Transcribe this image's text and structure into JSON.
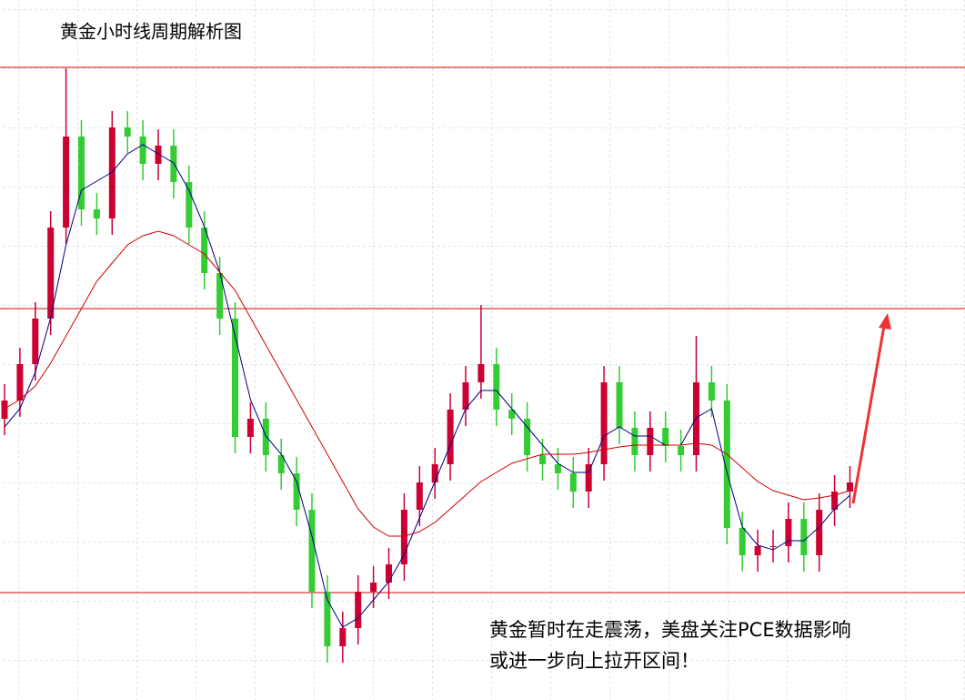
{
  "chart_data": {
    "type": "candlestick",
    "title": "黄金小时线周期解析图",
    "annotation": [
      "黄金暂时在走震荡，美盘关注PCE数据影响",
      "或进一步向上拉开区间！"
    ],
    "open": [
      309,
      329,
      369,
      419,
      519,
      619,
      539,
      529,
      629,
      619,
      589,
      609,
      569,
      519,
      469,
      419,
      289,
      309,
      269,
      249,
      209,
      119,
      59,
      79,
      119,
      129,
      149,
      209,
      239,
      259,
      319,
      349,
      369,
      319,
      309,
      269,
      259,
      249,
      229,
      259,
      349,
      299,
      269,
      299,
      279,
      269,
      349,
      329,
      189,
      159,
      169,
      169,
      199,
      159,
      209,
      229
    ],
    "high": [
      347,
      387,
      437,
      537,
      694,
      637,
      557,
      647,
      647,
      637,
      627,
      627,
      587,
      537,
      487,
      437,
      327,
      327,
      287,
      267,
      227,
      137,
      97,
      137,
      147,
      167,
      227,
      257,
      277,
      337,
      367,
      434,
      387,
      337,
      327,
      287,
      277,
      267,
      277,
      367,
      367,
      317,
      317,
      317,
      297,
      400,
      367,
      347,
      207,
      187,
      187,
      217,
      217,
      227,
      247,
      257
    ],
    "low": [
      291,
      311,
      351,
      401,
      501,
      521,
      511,
      511,
      601,
      571,
      571,
      551,
      501,
      451,
      401,
      271,
      271,
      251,
      231,
      191,
      101,
      41,
      41,
      61,
      101,
      111,
      131,
      191,
      221,
      241,
      301,
      331,
      301,
      291,
      251,
      241,
      231,
      211,
      211,
      241,
      281,
      251,
      251,
      261,
      251,
      251,
      311,
      171,
      141,
      141,
      151,
      151,
      141,
      141,
      191,
      211
    ],
    "close": [
      329,
      369,
      419,
      519,
      619,
      539,
      529,
      629,
      619,
      589,
      609,
      569,
      519,
      469,
      419,
      289,
      309,
      269,
      249,
      209,
      119,
      59,
      79,
      119,
      129,
      149,
      209,
      239,
      259,
      319,
      349,
      369,
      319,
      309,
      269,
      259,
      249,
      229,
      259,
      349,
      299,
      269,
      299,
      279,
      269,
      349,
      329,
      189,
      159,
      169,
      169,
      199,
      159,
      209,
      229,
      239
    ],
    "up_color": "#cc0033",
    "down_color": "#33cc33",
    "series": [
      {
        "color": "#000080",
        "values": [
          300,
          320,
          360,
          420,
          500,
          560,
          570,
          580,
          600,
          610,
          600,
          590,
          560,
          520,
          470,
          400,
          330,
          290,
          270,
          240,
          180,
          110,
          80,
          90,
          110,
          130,
          160,
          200,
          240,
          280,
          320,
          340,
          340,
          320,
          300,
          280,
          260,
          250,
          250,
          290,
          300,
          290,
          290,
          280,
          280,
          310,
          320,
          250,
          190,
          170,
          165,
          175,
          175,
          190,
          210,
          225
        ]
      },
      {
        "color": "#cc0000",
        "values": [
          320,
          330,
          345,
          370,
          400,
          430,
          460,
          480,
          500,
          510,
          515,
          510,
          500,
          490,
          470,
          450,
          420,
          390,
          360,
          330,
          300,
          270,
          240,
          210,
          190,
          180,
          180,
          185,
          195,
          210,
          225,
          240,
          250,
          260,
          265,
          270,
          270,
          270,
          272,
          275,
          278,
          280,
          280,
          280,
          280,
          282,
          280,
          270,
          255,
          240,
          230,
          225,
          220,
          222,
          225,
          230
        ]
      }
    ],
    "levels": [
      695,
      430,
      118
    ],
    "level_color": "#dd0000",
    "ylim": [
      0,
      769
    ]
  }
}
